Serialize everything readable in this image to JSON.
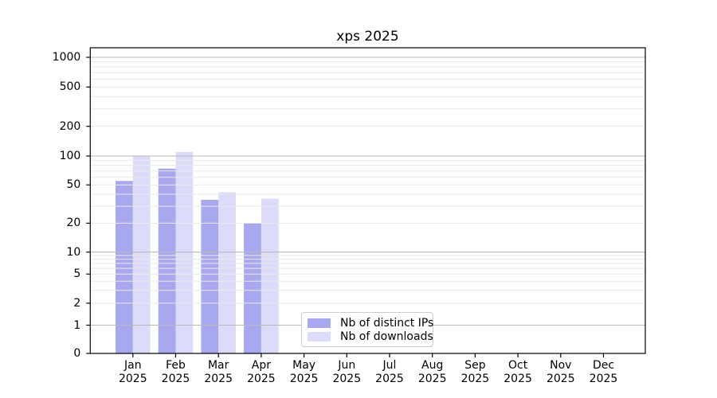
{
  "chart_data": {
    "type": "bar",
    "title": "xps 2025",
    "categories": [
      "Jan 2025",
      "Feb 2025",
      "Mar 2025",
      "Apr 2025",
      "May 2025",
      "Jun 2025",
      "Jul 2025",
      "Aug 2025",
      "Sep 2025",
      "Oct 2025",
      "Nov 2025",
      "Dec 2025"
    ],
    "series": [
      {
        "name": "Nb of distinct IPs",
        "color": "#a8a8ee",
        "values": [
          55,
          74,
          35,
          20,
          0,
          0,
          0,
          0,
          0,
          0,
          0,
          0
        ]
      },
      {
        "name": "Nb of downloads",
        "color": "#dcdcfa",
        "values": [
          100,
          110,
          42,
          36,
          0,
          0,
          0,
          0,
          0,
          0,
          0,
          0
        ]
      }
    ],
    "yscale": "log-with-zero-baseline",
    "yticks": [
      0,
      1,
      2,
      5,
      10,
      20,
      50,
      100,
      200,
      500,
      1000
    ],
    "ylim": [
      0,
      1200
    ],
    "xlabel": "",
    "ylabel": "",
    "grid": "horizontal major and minor, drawn over bars",
    "legend_position": "bottom center-left inside plot"
  },
  "colors": {
    "background": "#ffffff",
    "grid_major": "#b9b9b9",
    "grid_minor": "#e9e9e9",
    "axis": "#000000",
    "legend_border": "#cccccc",
    "text": "#000000"
  }
}
